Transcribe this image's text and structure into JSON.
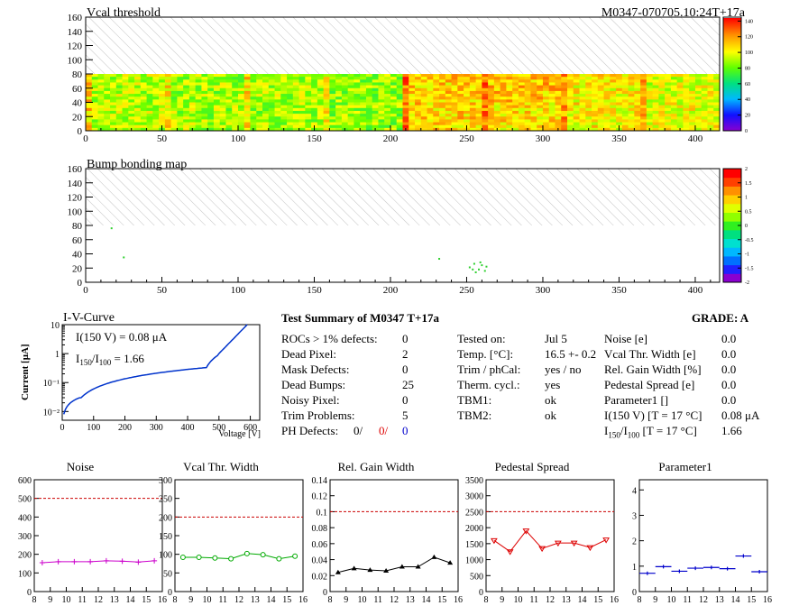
{
  "header": {
    "module_id": "M0347-070705.10:24T+17a"
  },
  "maps": [
    {
      "title": "Vcal threshold",
      "x_ticks": [
        "0",
        "50",
        "100",
        "150",
        "200",
        "250",
        "300",
        "350",
        "400"
      ],
      "y_ticks": [
        "0",
        "20",
        "40",
        "60",
        "80",
        "100",
        "120",
        "140",
        "160"
      ],
      "z_ticks": [
        "0",
        "20",
        "40",
        "60",
        "80",
        "100",
        "120",
        "140"
      ],
      "zlim": [
        0,
        145
      ],
      "xlim": [
        0,
        416
      ],
      "ylim": [
        0,
        160
      ],
      "filled_ylim": [
        0,
        80
      ]
    },
    {
      "title": "Bump bonding map",
      "x_ticks": [
        "0",
        "50",
        "100",
        "150",
        "200",
        "250",
        "300",
        "350",
        "400"
      ],
      "y_ticks": [
        "0",
        "20",
        "40",
        "60",
        "80",
        "100",
        "120",
        "140",
        "160"
      ],
      "z_ticks": [
        "-2",
        "-1.5",
        "-1",
        "-0.5",
        "0",
        "0.5",
        "1",
        "1.5",
        "2"
      ],
      "zlim": [
        -2,
        2
      ],
      "xlim": [
        0,
        416
      ],
      "ylim": [
        0,
        160
      ],
      "filled_ylim": [
        0,
        80
      ]
    }
  ],
  "iv": {
    "title": "I-V-Curve",
    "ylabel": "Current [μA]",
    "xlabel": "Voltage [V]",
    "annotation1": "I(150 V) = 0.08 μA",
    "annotation2_a": "I",
    "annotation2_sub1": "150",
    "annotation2_b": "/I",
    "annotation2_sub2": "100",
    "annotation2_c": " =  1.66",
    "x_ticks": [
      "0",
      "100",
      "200",
      "300",
      "400",
      "500",
      "600"
    ],
    "y_ticks": [
      "10⁻²",
      "10⁻¹",
      "1",
      "10"
    ]
  },
  "summary": {
    "title": "Test Summary of M0347     T+17a",
    "grade": "GRADE:  A",
    "left": [
      {
        "label": "ROCs > 1% defects:",
        "value": "0"
      },
      {
        "label": "Dead Pixel:",
        "value": "2"
      },
      {
        "label": "Mask Defects:",
        "value": "0"
      },
      {
        "label": "Dead Bumps:",
        "value": "25"
      },
      {
        "label": "Noisy Pixel:",
        "value": "0"
      },
      {
        "label": "Trim Problems:",
        "value": "5"
      }
    ],
    "ph_label": "PH Defects:",
    "ph_v1": "0/",
    "ph_v2": "0/",
    "ph_v3": "0",
    "ph_colors": [
      "#000000",
      "#dd0000",
      "#0000cc"
    ],
    "mid": [
      {
        "label": "Tested on:",
        "value": "Jul 5"
      },
      {
        "label": "Temp. [°C]:",
        "value": "16.5 +- 0.2"
      },
      {
        "label": "Trim / phCal:",
        "value": "yes / no"
      },
      {
        "label": "Therm. cycl.:",
        "value": "yes"
      },
      {
        "label": "TBM1:",
        "value": "ok"
      },
      {
        "label": "TBM2:",
        "value": "ok"
      }
    ],
    "right": [
      {
        "label": "Noise [e]",
        "value": "0.0"
      },
      {
        "label": "Vcal Thr. Width [e]",
        "value": "0.0"
      },
      {
        "label": "Rel. Gain Width [%]",
        "value": "0.0"
      },
      {
        "label": "Pedestal Spread [e]",
        "value": "0.0"
      },
      {
        "label": "Parameter1 []",
        "value": "0.0"
      },
      {
        "label": "I(150 V) [T = 17 °C]",
        "value": "0.08 μA"
      }
    ],
    "ratio_a": "I",
    "ratio_sub1": "150",
    "ratio_b": "/I",
    "ratio_sub2": "100",
    "ratio_c": "  [T = 17 °C]",
    "ratio_value": "1.66"
  },
  "chart_data": [
    {
      "type": "line",
      "title": "Noise",
      "x": [
        8.5,
        9.5,
        10.5,
        11.5,
        12.5,
        13.5,
        14.5,
        15.5
      ],
      "values": [
        155,
        160,
        160,
        160,
        165,
        163,
        158,
        165
      ],
      "xlim": [
        8,
        16
      ],
      "ylim": [
        0,
        600
      ],
      "y_ticks": [
        "0",
        "100",
        "200",
        "300",
        "400",
        "500",
        "600"
      ],
      "threshold": 500,
      "color": "#cc00cc",
      "marker": "plus"
    },
    {
      "type": "line",
      "title": "Vcal Thr. Width",
      "x": [
        8.5,
        9.5,
        10.5,
        11.5,
        12.5,
        13.5,
        14.5,
        15.5
      ],
      "values": [
        92,
        92,
        90,
        88,
        102,
        99,
        88,
        95
      ],
      "xlim": [
        8,
        16
      ],
      "ylim": [
        0,
        300
      ],
      "y_ticks": [
        "0",
        "50",
        "100",
        "150",
        "200",
        "250",
        "300"
      ],
      "threshold": 200,
      "color": "#00aa00",
      "marker": "circle"
    },
    {
      "type": "line",
      "title": "Rel. Gain Width",
      "x": [
        8.5,
        9.5,
        10.5,
        11.5,
        12.5,
        13.5,
        14.5,
        15.5
      ],
      "values": [
        0.024,
        0.029,
        0.027,
        0.026,
        0.031,
        0.031,
        0.043,
        0.036
      ],
      "xlim": [
        8,
        16
      ],
      "ylim": [
        0,
        0.14
      ],
      "y_ticks": [
        "0",
        "0.02",
        "0.04",
        "0.06",
        "0.08",
        "0.1",
        "0.12",
        "0.14"
      ],
      "threshold": 0.1,
      "color": "#000000",
      "marker": "triangle"
    },
    {
      "type": "line",
      "title": "Pedestal Spread",
      "x": [
        8.5,
        9.5,
        10.5,
        11.5,
        12.5,
        13.5,
        14.5,
        15.5
      ],
      "values": [
        1600,
        1250,
        1900,
        1350,
        1520,
        1520,
        1380,
        1620
      ],
      "xlim": [
        8,
        16
      ],
      "ylim": [
        0,
        3500
      ],
      "y_ticks": [
        "0",
        "500",
        "1000",
        "1500",
        "2000",
        "2500",
        "3000",
        "3500"
      ],
      "threshold": 2500,
      "color": "#dd0000",
      "marker": "triangle-down"
    },
    {
      "type": "scatter",
      "title": "Parameter1",
      "x": [
        8.5,
        9.5,
        10.5,
        11.5,
        12.5,
        13.5,
        14.5,
        15.5
      ],
      "values": [
        0.72,
        0.98,
        0.8,
        0.92,
        0.95,
        0.9,
        1.4,
        0.78
      ],
      "xlim": [
        8,
        16
      ],
      "ylim": [
        0,
        4.4
      ],
      "y_ticks": [
        "0",
        "1",
        "2",
        "3",
        "4"
      ],
      "color": "#0000cc",
      "marker": "hbar"
    }
  ],
  "x_ticks_small": [
    "8",
    "9",
    "10",
    "11",
    "12",
    "13",
    "14",
    "15",
    "16"
  ]
}
